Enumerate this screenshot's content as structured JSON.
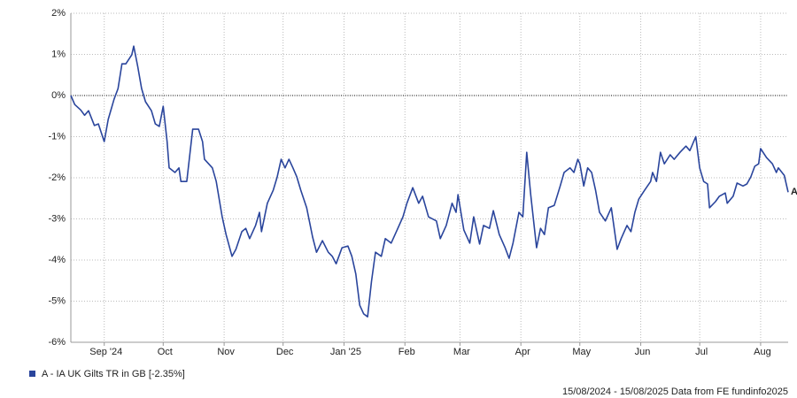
{
  "chart_data": {
    "type": "line",
    "series": [
      {
        "name": "A - IA UK Gilts TR in GB [-2.35%]",
        "color": "#2a459c",
        "values": [
          0,
          -0.22,
          -0.35,
          -0.48,
          -0.37,
          -0.73,
          -0.69,
          -1.12,
          -0.58,
          -0.09,
          0.17,
          0.77,
          0.77,
          0.99,
          1.2,
          0.71,
          0.17,
          -0.15,
          -0.37,
          -0.69,
          -0.75,
          -0.26,
          -1.12,
          -1.76,
          -1.87,
          -1.76,
          -2.09,
          -2.09,
          -0.82,
          -0.82,
          -1.12,
          -1.55,
          -1.76,
          -2.09,
          -2.95,
          -3.38,
          -3.91,
          -3.74,
          -3.31,
          -3.23,
          -3.48,
          -3.16,
          -2.84,
          -3.31,
          -2.62,
          -2.3,
          -1.98,
          -1.55,
          -1.76,
          -1.55,
          -1.76,
          -1.98,
          -2.3,
          -2.73,
          -3.44,
          -3.81,
          -3.53,
          -3.81,
          -3.91,
          -4.09,
          -3.7,
          -3.66,
          -3.91,
          -4.34,
          -5.1,
          -5.31,
          -5.38,
          -4.52,
          -3.81,
          -3.91,
          -3.48,
          -3.59,
          -3.27,
          -2.95,
          -2.62,
          -2.24,
          -2.62,
          -2.45,
          -2.95,
          -3.05,
          -3.48,
          -3.16,
          -2.62,
          -2.84,
          -2.41,
          -3.27,
          -3.59,
          -2.95,
          -3.61,
          -3.16,
          -3.23,
          -2.8,
          -3.38,
          -3.7,
          -3.96,
          -3.59,
          -2.84,
          -2.95,
          -1.38,
          -2.41,
          -3.7,
          -3.23,
          -3.38,
          -2.73,
          -2.67,
          -2.2,
          -1.87,
          -1.76,
          -1.87,
          -1.55,
          -1.66,
          -2.2,
          -1.76,
          -1.87,
          -2.3,
          -2.84,
          -3.05,
          -2.73,
          -3.74,
          -3.48,
          -3.16,
          -3.31,
          -2.84,
          -2.52,
          -2.3,
          -2.09,
          -1.87,
          -2.09,
          -1.38,
          -1.66,
          -1.44,
          -1.55,
          -1.38,
          -1.23,
          -1.34,
          -1.0,
          -1.76,
          -2.09,
          -2.15,
          -2.73,
          -2.58,
          -2.45,
          -2.37,
          -2.62,
          -2.45,
          -2.13,
          -2.2,
          -2.15,
          -1.98,
          -1.72,
          -1.66,
          -1.29,
          -1.51,
          -1.66,
          -1.87,
          -1.76,
          -1.94,
          -2.35
        ]
      }
    ],
    "x": [
      "2024-08-15",
      "2024-08-17",
      "2024-08-20",
      "2024-08-22",
      "2024-08-24",
      "2024-08-27",
      "2024-08-29",
      "2024-09-01",
      "2024-09-03",
      "2024-09-06",
      "2024-09-08",
      "2024-09-10",
      "2024-09-12",
      "2024-09-15",
      "2024-09-16",
      "2024-09-18",
      "2024-09-20",
      "2024-09-22",
      "2024-09-25",
      "2024-09-27",
      "2024-09-29",
      "2024-10-01",
      "2024-10-03",
      "2024-10-04",
      "2024-10-07",
      "2024-10-09",
      "2024-10-10",
      "2024-10-13",
      "2024-10-16",
      "2024-10-19",
      "2024-10-21",
      "2024-10-22",
      "2024-10-26",
      "2024-10-28",
      "2024-10-31",
      "2024-11-02",
      "2024-11-05",
      "2024-11-07",
      "2024-11-10",
      "2024-11-12",
      "2024-11-14",
      "2024-11-17",
      "2024-11-19",
      "2024-11-20",
      "2024-11-23",
      "2024-11-26",
      "2024-11-28",
      "2024-11-30",
      "2024-12-02",
      "2024-12-04",
      "2024-12-06",
      "2024-12-08",
      "2024-12-10",
      "2024-12-13",
      "2024-12-16",
      "2024-12-18",
      "2024-12-21",
      "2024-12-24",
      "2024-12-26",
      "2024-12-28",
      "2024-12-31",
      "2025-01-03",
      "2025-01-05",
      "2025-01-07",
      "2025-01-09",
      "2025-01-11",
      "2025-01-13",
      "2025-01-15",
      "2025-01-17",
      "2025-01-20",
      "2025-01-22",
      "2025-01-25",
      "2025-01-28",
      "2025-01-31",
      "2025-02-02",
      "2025-02-05",
      "2025-02-08",
      "2025-02-10",
      "2025-02-13",
      "2025-02-17",
      "2025-02-19",
      "2025-02-22",
      "2025-02-25",
      "2025-02-27",
      "2025-02-28",
      "2025-03-03",
      "2025-03-06",
      "2025-03-08",
      "2025-03-11",
      "2025-03-13",
      "2025-03-16",
      "2025-03-18",
      "2025-03-21",
      "2025-03-24",
      "2025-03-26",
      "2025-03-28",
      "2025-03-31",
      "2025-04-02",
      "2025-04-04",
      "2025-04-06",
      "2025-04-09",
      "2025-04-11",
      "2025-04-13",
      "2025-04-15",
      "2025-04-18",
      "2025-04-21",
      "2025-04-23",
      "2025-04-26",
      "2025-04-28",
      "2025-04-30",
      "2025-05-01",
      "2025-05-03",
      "2025-05-05",
      "2025-05-07",
      "2025-05-09",
      "2025-05-11",
      "2025-05-14",
      "2025-05-17",
      "2025-05-20",
      "2025-05-22",
      "2025-05-25",
      "2025-05-27",
      "2025-05-29",
      "2025-05-31",
      "2025-06-03",
      "2025-06-06",
      "2025-06-07",
      "2025-06-09",
      "2025-06-11",
      "2025-06-13",
      "2025-06-16",
      "2025-06-18",
      "2025-06-21",
      "2025-06-24",
      "2025-06-26",
      "2025-06-29",
      "2025-07-01",
      "2025-07-03",
      "2025-07-05",
      "2025-07-06",
      "2025-07-09",
      "2025-07-11",
      "2025-07-14",
      "2025-07-15",
      "2025-07-18",
      "2025-07-20",
      "2025-07-23",
      "2025-07-25",
      "2025-07-27",
      "2025-07-29",
      "2025-07-31",
      "2025-08-01",
      "2025-08-04",
      "2025-08-07",
      "2025-08-09",
      "2025-08-10",
      "2025-08-13",
      "2025-08-15"
    ],
    "xlim": [
      "2024-08-15",
      "2025-08-15"
    ],
    "xticks": [
      {
        "value": "2024-09-01",
        "label": "Sep '24"
      },
      {
        "value": "2024-10-01",
        "label": "Oct"
      },
      {
        "value": "2024-11-01",
        "label": "Nov"
      },
      {
        "value": "2024-12-01",
        "label": "Dec"
      },
      {
        "value": "2025-01-01",
        "label": "Jan '25"
      },
      {
        "value": "2025-02-01",
        "label": "Feb"
      },
      {
        "value": "2025-03-01",
        "label": "Mar"
      },
      {
        "value": "2025-04-01",
        "label": "Apr"
      },
      {
        "value": "2025-05-01",
        "label": "May"
      },
      {
        "value": "2025-06-01",
        "label": "Jun"
      },
      {
        "value": "2025-07-01",
        "label": "Jul"
      },
      {
        "value": "2025-08-01",
        "label": "Aug"
      }
    ],
    "ylim": [
      -6,
      2
    ],
    "yticks": [
      {
        "value": -6,
        "label": "-6%"
      },
      {
        "value": -5,
        "label": "-5%"
      },
      {
        "value": -4,
        "label": "-4%"
      },
      {
        "value": -3,
        "label": "-3%"
      },
      {
        "value": -2,
        "label": "-2%"
      },
      {
        "value": -1,
        "label": "-1%"
      },
      {
        "value": 0,
        "label": "0%"
      },
      {
        "value": 1,
        "label": "1%"
      },
      {
        "value": 2,
        "label": "2%"
      }
    ],
    "grid": true,
    "end_label": "A",
    "footer": "15/08/2024 - 15/08/2025 Data from FE fundinfo2025"
  }
}
